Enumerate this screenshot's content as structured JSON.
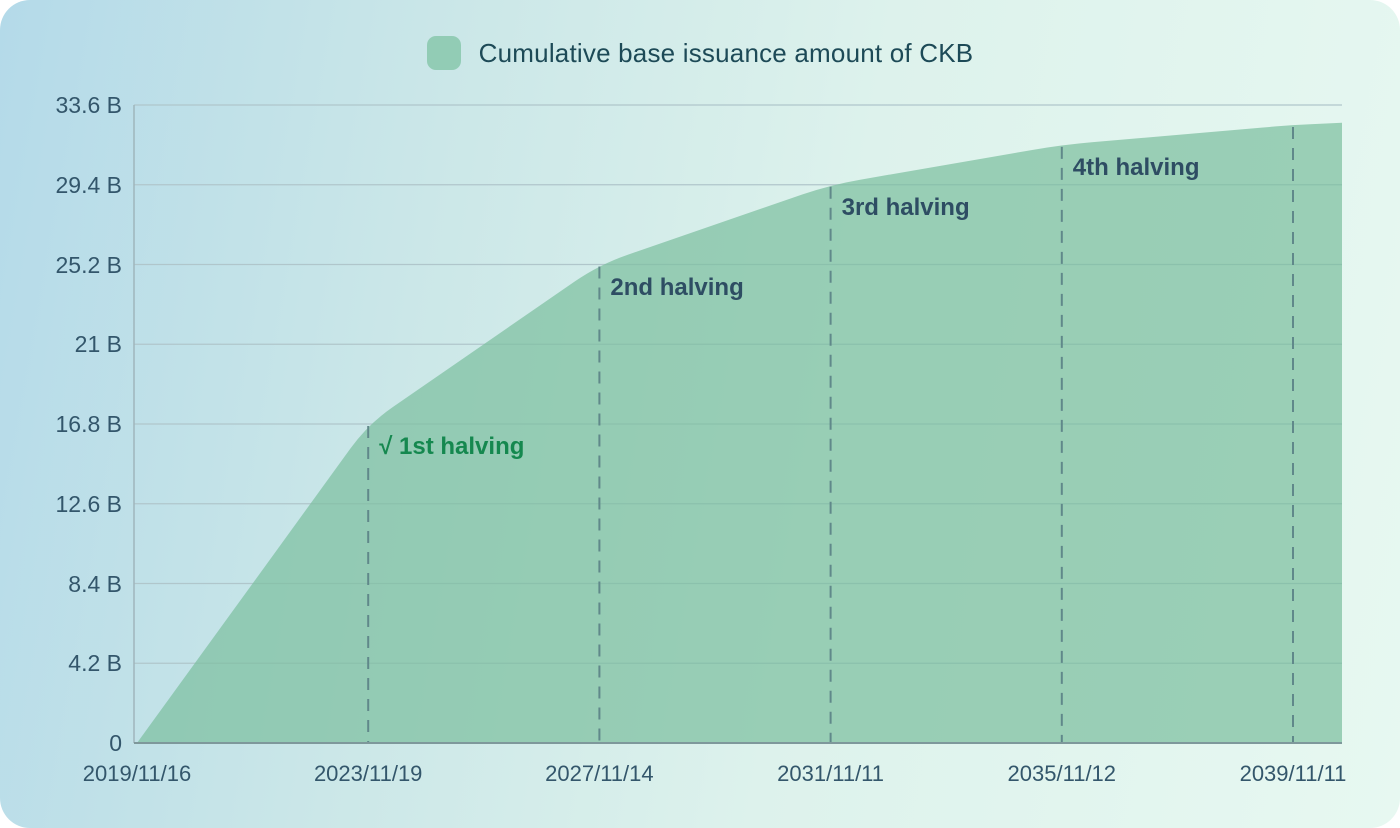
{
  "chart_data": {
    "type": "area",
    "title": "Cumulative base issuance amount of CKB",
    "legend": {
      "label": "Cumulative base issuance amount of CKB",
      "position": "top-center"
    },
    "xlabel": "",
    "ylabel": "",
    "x_tick_labels": [
      "2019/11/16",
      "2023/11/19",
      "2027/11/14",
      "2031/11/11",
      "2035/11/12",
      "2039/11/11"
    ],
    "y_tick_labels": [
      "0",
      "4.2 B",
      "8.4 B",
      "12.6 B",
      "16.8 B",
      "21 B",
      "25.2 B",
      "29.4 B",
      "33.6 B"
    ],
    "ylim": [
      0,
      33.6
    ],
    "grid": true,
    "series": [
      {
        "name": "Cumulative base issuance amount of CKB",
        "x_index": [
          0,
          1,
          2,
          3,
          4,
          5,
          5.212
        ],
        "values_billion": [
          0,
          16.8,
          25.2,
          29.4,
          31.5,
          32.55,
          32.66
        ]
      }
    ],
    "halving_lines_x_index": [
      1,
      2,
      3,
      4,
      5
    ],
    "annotations": [
      {
        "label": "√ 1st halving",
        "x_index": 1,
        "value_billion": 16.8,
        "color": "#15884f"
      },
      {
        "label": "2nd halving",
        "x_index": 2,
        "value_billion": 25.2,
        "color": "#2e4d63"
      },
      {
        "label": "3rd halving",
        "x_index": 3,
        "value_billion": 29.4,
        "color": "#2e4d63"
      },
      {
        "label": "4th halving",
        "x_index": 4,
        "value_billion": 31.5,
        "color": "#2e4d63"
      }
    ],
    "theme": {
      "area_fill": "#7dbfa0",
      "area_fill_opacity": 0.72,
      "legend_swatch": "#92ccb5",
      "grid_line": "#b0c6cb",
      "axis_line_left": "#9fb5bc",
      "axis_line_bottom": "#7e989b",
      "dashed_line": "#60888a",
      "tick_text": "#33566b",
      "annotation_text": "#2e4d63",
      "annotation_done_text": "#15884f",
      "legend_text": "#1d4a57",
      "background_gradient": [
        "#b4dae9",
        "#cbe7e8",
        "#ddf2ec",
        "#e7f8f1"
      ]
    }
  }
}
